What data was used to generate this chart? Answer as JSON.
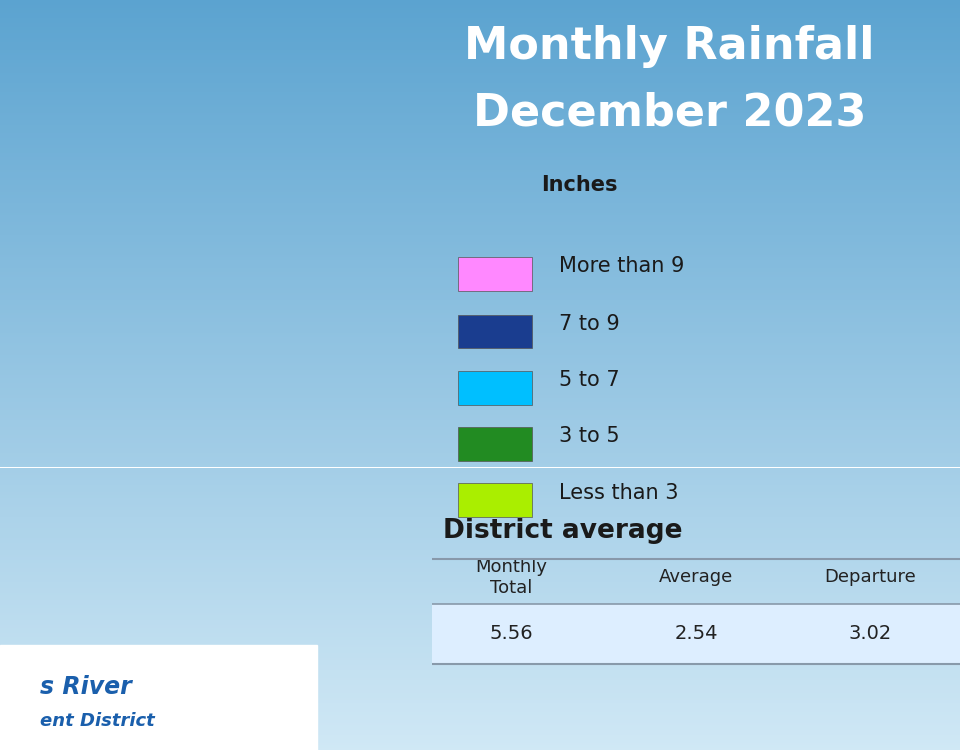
{
  "title_line1": "Monthly Rainfall",
  "title_line2": "December 2023",
  "title_color": "#ffffff",
  "title_fontsize": 32,
  "background_top": "#5ba3d0",
  "background_bottom": "#d0e8f5",
  "legend_title": "Inches",
  "legend_items": [
    {
      "label": "More than 9",
      "color": "#ff88ff"
    },
    {
      "label": "7 to 9",
      "color": "#1a3d8f"
    },
    {
      "label": "5 to 7",
      "color": "#00bfff"
    },
    {
      "label": "3 to 5",
      "color": "#228b22"
    },
    {
      "label": "Less than 3",
      "color": "#aaee00"
    }
  ],
  "district_average_title": "District average",
  "table_headers": [
    "Monthly\nTotal",
    "Average",
    "Departure"
  ],
  "table_values": [
    "5.56",
    "2.54",
    "3.02"
  ],
  "table_header_fontsize": 13,
  "table_value_fontsize": 14,
  "logo_text_line1": "s River",
  "logo_text_line2": "ent District",
  "logo_color": "#1a5fac"
}
